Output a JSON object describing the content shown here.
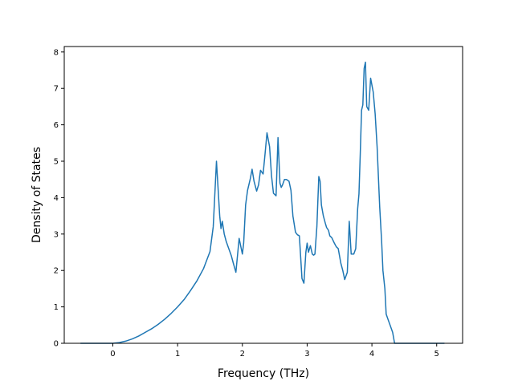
{
  "chart_data": {
    "type": "line",
    "title": "",
    "xlabel": "Frequency (THz)",
    "ylabel": "Density of States",
    "xlim": [
      -0.75,
      5.4
    ],
    "ylim": [
      0,
      8.15
    ],
    "xticks": [
      0,
      1,
      2,
      3,
      4,
      5
    ],
    "yticks": [
      0,
      1,
      2,
      3,
      4,
      5,
      6,
      7,
      8
    ],
    "grid": false,
    "legend": "none",
    "series": [
      {
        "color": "#1f77b4",
        "x": [
          -0.5,
          -0.3,
          -0.1,
          0,
          0.1,
          0.2,
          0.3,
          0.4,
          0.5,
          0.6,
          0.7,
          0.8,
          0.9,
          1.0,
          1.1,
          1.2,
          1.3,
          1.4,
          1.5,
          1.55,
          1.6,
          1.65,
          1.67,
          1.69,
          1.72,
          1.75,
          1.78,
          1.8,
          1.83,
          1.86,
          1.9,
          1.95,
          2.0,
          2.02,
          2.05,
          2.08,
          2.12,
          2.15,
          2.18,
          2.22,
          2.25,
          2.28,
          2.32,
          2.35,
          2.38,
          2.42,
          2.45,
          2.48,
          2.52,
          2.55,
          2.58,
          2.6,
          2.62,
          2.65,
          2.68,
          2.72,
          2.75,
          2.78,
          2.82,
          2.85,
          2.88,
          2.92,
          2.95,
          2.98,
          3.0,
          3.02,
          3.05,
          3.08,
          3.1,
          3.12,
          3.15,
          3.18,
          3.2,
          3.22,
          3.25,
          3.28,
          3.3,
          3.33,
          3.35,
          3.38,
          3.42,
          3.45,
          3.48,
          3.52,
          3.55,
          3.58,
          3.62,
          3.65,
          3.68,
          3.72,
          3.75,
          3.78,
          3.8,
          3.82,
          3.84,
          3.86,
          3.88,
          3.9,
          3.92,
          3.95,
          3.98,
          4.02,
          4.05,
          4.08,
          4.12,
          4.15,
          4.17,
          4.2,
          4.22,
          4.25,
          4.28,
          4.32,
          4.35,
          4.38,
          4.42,
          4.45,
          4.48,
          4.52,
          4.55,
          4.58,
          4.62,
          4.65,
          4.7,
          4.8,
          5.0,
          5.12
        ],
        "y": [
          0,
          0,
          0,
          0,
          0.02,
          0.06,
          0.12,
          0.2,
          0.3,
          0.4,
          0.52,
          0.66,
          0.82,
          1.0,
          1.2,
          1.45,
          1.72,
          2.05,
          2.52,
          3.2,
          5.0,
          3.5,
          3.15,
          3.35,
          3.0,
          2.8,
          2.65,
          2.55,
          2.4,
          2.2,
          1.95,
          2.88,
          2.45,
          2.75,
          3.8,
          4.2,
          4.5,
          4.78,
          4.45,
          4.18,
          4.35,
          4.75,
          4.65,
          5.2,
          5.78,
          5.4,
          4.6,
          4.12,
          4.05,
          5.65,
          4.4,
          4.28,
          4.35,
          4.5,
          4.5,
          4.45,
          4.2,
          3.5,
          3.05,
          2.98,
          2.95,
          1.78,
          1.65,
          2.5,
          2.75,
          2.5,
          2.68,
          2.45,
          2.42,
          2.45,
          3.2,
          4.58,
          4.45,
          3.8,
          3.5,
          3.3,
          3.18,
          3.1,
          2.95,
          2.9,
          2.75,
          2.65,
          2.6,
          2.2,
          2.0,
          1.75,
          1.95,
          3.35,
          2.45,
          2.45,
          2.6,
          3.7,
          4.1,
          5.2,
          6.4,
          6.55,
          7.55,
          7.72,
          6.5,
          6.4,
          7.28,
          6.9,
          6.3,
          5.4,
          3.75,
          2.8,
          2.0,
          1.5,
          0.8,
          0.65,
          0.5,
          0.3,
          0,
          0,
          0,
          0,
          0,
          0,
          0,
          0,
          0,
          0,
          0,
          0,
          0,
          0
        ]
      }
    ]
  }
}
